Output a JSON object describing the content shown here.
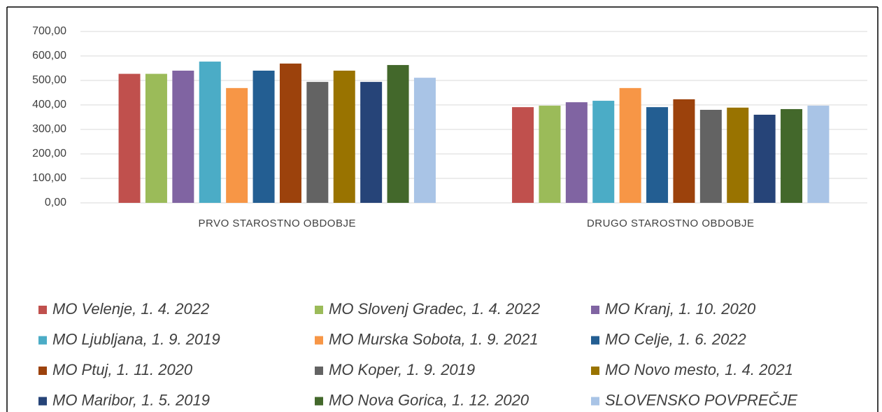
{
  "chart_data": {
    "type": "bar",
    "categories": [
      "PRVO STAROSTNO OBDOBJE",
      "DRUGO STAROSTNO OBDOBJE"
    ],
    "series": [
      {
        "name": "MO Velenje, 1. 4. 2022",
        "color": "#c0504d",
        "values": [
          527,
          391
        ]
      },
      {
        "name": "MO Slovenj Gradec, 1. 4. 2022",
        "color": "#9bbb59",
        "values": [
          527,
          397
        ]
      },
      {
        "name": "MO Kranj, 1. 10. 2020",
        "color": "#8064a2",
        "values": [
          540,
          411
        ]
      },
      {
        "name": "MO Ljubljana, 1. 9. 2019",
        "color": "#4bacc6",
        "values": [
          577,
          417
        ]
      },
      {
        "name": "MO Murska Sobota, 1. 9. 2021",
        "color": "#f79646",
        "values": [
          469,
          469
        ]
      },
      {
        "name": "MO Celje, 1. 6. 2022",
        "color": "#235e92",
        "values": [
          540,
          391
        ]
      },
      {
        "name": "MO Ptuj, 1. 11. 2020",
        "color": "#9c420c",
        "values": [
          569,
          423
        ]
      },
      {
        "name": "MO Koper, 1. 9. 2019",
        "color": "#636363",
        "values": [
          494,
          380
        ]
      },
      {
        "name": "MO Novo mesto, 1. 4. 2021",
        "color": "#997300",
        "values": [
          540,
          389
        ]
      },
      {
        "name": "MO Maribor, 1. 5. 2019",
        "color": "#264478",
        "values": [
          494,
          360
        ]
      },
      {
        "name": "MO Nova Gorica, 1. 12. 2020",
        "color": "#43682b",
        "values": [
          563,
          383
        ]
      },
      {
        "name": "SLOVENSKO POVPREČJE",
        "color": "#a9c4e6",
        "values": [
          511,
          397
        ]
      }
    ],
    "ylim": [
      0,
      700
    ],
    "yticks": [
      {
        "value": 0,
        "label": "0,00"
      },
      {
        "value": 100,
        "label": "100,00"
      },
      {
        "value": 200,
        "label": "200,00"
      },
      {
        "value": 300,
        "label": "300,00"
      },
      {
        "value": 400,
        "label": "400,00"
      },
      {
        "value": 500,
        "label": "500,00"
      },
      {
        "value": 600,
        "label": "600,00"
      },
      {
        "value": 700,
        "label": "700,00"
      }
    ],
    "grid": true,
    "legend": "bottom"
  }
}
